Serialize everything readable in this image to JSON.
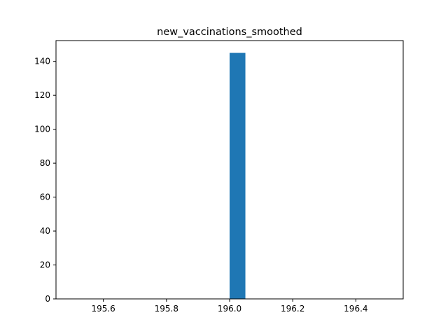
{
  "chart_data": {
    "type": "bar",
    "title": "new_vaccinations_smoothed",
    "xlabel": "",
    "ylabel": "",
    "xlim": [
      195.45,
      196.55
    ],
    "ylim": [
      0,
      152.25
    ],
    "bars": [
      {
        "x_start": 196.0,
        "x_end": 196.05,
        "value": 145
      }
    ],
    "x_ticks": [
      195.6,
      195.8,
      196.0,
      196.2,
      196.4
    ],
    "x_tick_labels": [
      "195.6",
      "195.8",
      "196.0",
      "196.2",
      "196.4"
    ],
    "y_ticks": [
      0,
      20,
      40,
      60,
      80,
      100,
      120,
      140
    ],
    "y_tick_labels": [
      "0",
      "20",
      "40",
      "60",
      "80",
      "100",
      "120",
      "140"
    ],
    "grid": false,
    "bar_color": "#1f77b4"
  }
}
